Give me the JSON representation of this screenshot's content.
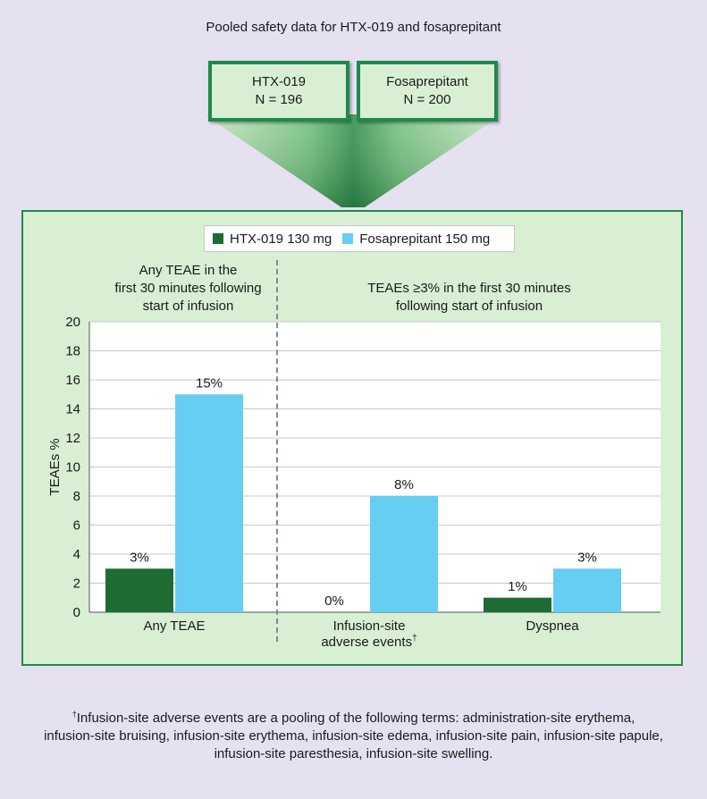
{
  "title": "Pooled safety data for HTX-019 and fosaprepitant",
  "groups": [
    {
      "name": "HTX-019",
      "n": "N = 196"
    },
    {
      "name": "Fosaprepitant",
      "n": "N = 200"
    }
  ],
  "colors": {
    "htx": "#1e6b34",
    "fos": "#66cdf3",
    "border": "#1d8a4c",
    "panel_bg": "#d8efd3",
    "page_bg": "#e6e1f1"
  },
  "panel_titles": {
    "left": [
      "Any TEAE in the",
      "first 30 minutes following",
      "start of infusion"
    ],
    "right": [
      "TEAEs ≥3% in the first 30 minutes",
      "following start of infusion"
    ]
  },
  "chart_data": {
    "type": "bar",
    "categories": [
      "Any TEAE",
      "Infusion-site adverse events†",
      "Dyspnea"
    ],
    "series": [
      {
        "name": "HTX-019 130 mg",
        "values": [
          3,
          0,
          1
        ],
        "labels": [
          "3%",
          "0%",
          "1%"
        ]
      },
      {
        "name": "Fosaprepitant 150 mg",
        "values": [
          15,
          8,
          3
        ],
        "labels": [
          "15%",
          "8%",
          "3%"
        ]
      }
    ],
    "ylabel": "TEAEs %",
    "ylim": [
      0,
      20
    ],
    "yticks": [
      0,
      2,
      4,
      6,
      8,
      10,
      12,
      14,
      16,
      18,
      20
    ],
    "grid": true,
    "legend": "top"
  },
  "footnote": {
    "mark": "†",
    "lines": [
      "Infusion-site adverse events are a pooling of the following terms: administration-site erythema,",
      "infusion-site bruising, infusion-site erythema, infusion-site edema, infusion-site pain, infusion-site papule,",
      "infusion-site paresthesia, infusion-site swelling."
    ]
  }
}
